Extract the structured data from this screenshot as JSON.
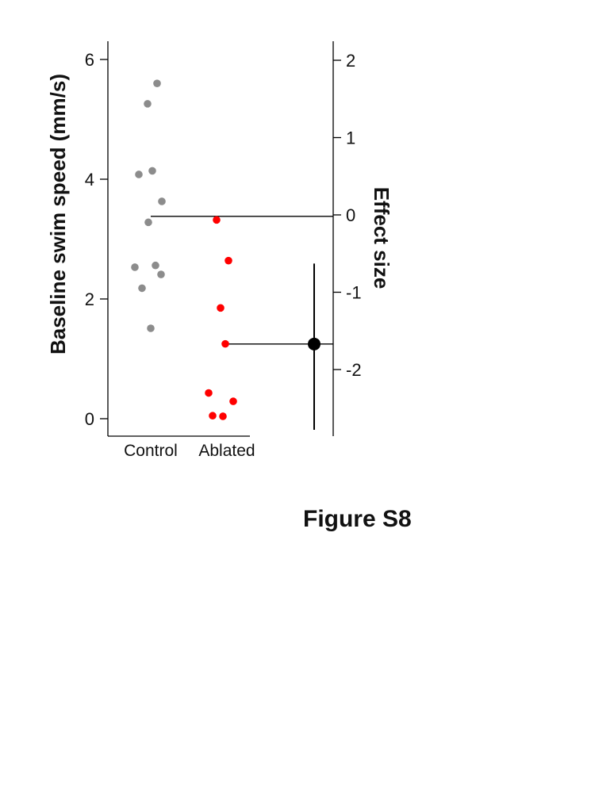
{
  "figure_label": "Figure S8",
  "chart_data": {
    "type": "scatter",
    "ylabel": "Baseline swim speed (mm/s)",
    "ylim": [
      0,
      6
    ],
    "yticks": [
      "0",
      "2",
      "4",
      "6"
    ],
    "categories": [
      "Control",
      "Ablated"
    ],
    "series": [
      {
        "name": "Control",
        "color": "#8c8c8c",
        "values": [
          5.6,
          5.26,
          4.14,
          4.08,
          3.63,
          3.28,
          2.56,
          2.53,
          2.41,
          2.18,
          1.51
        ]
      },
      {
        "name": "Ablated",
        "color": "#ff0000",
        "values": [
          3.32,
          2.64,
          1.85,
          1.25,
          0.43,
          0.29,
          0.05,
          0.04
        ]
      }
    ],
    "reference_line": 3.38,
    "secondary_axis": {
      "label": "Effect size",
      "ylim": [
        -2.8,
        2.3
      ],
      "yticks": [
        "2",
        "1",
        "0",
        "-1",
        "-2"
      ],
      "estimate": -1.67,
      "ci": [
        -2.78,
        -0.63
      ]
    }
  }
}
